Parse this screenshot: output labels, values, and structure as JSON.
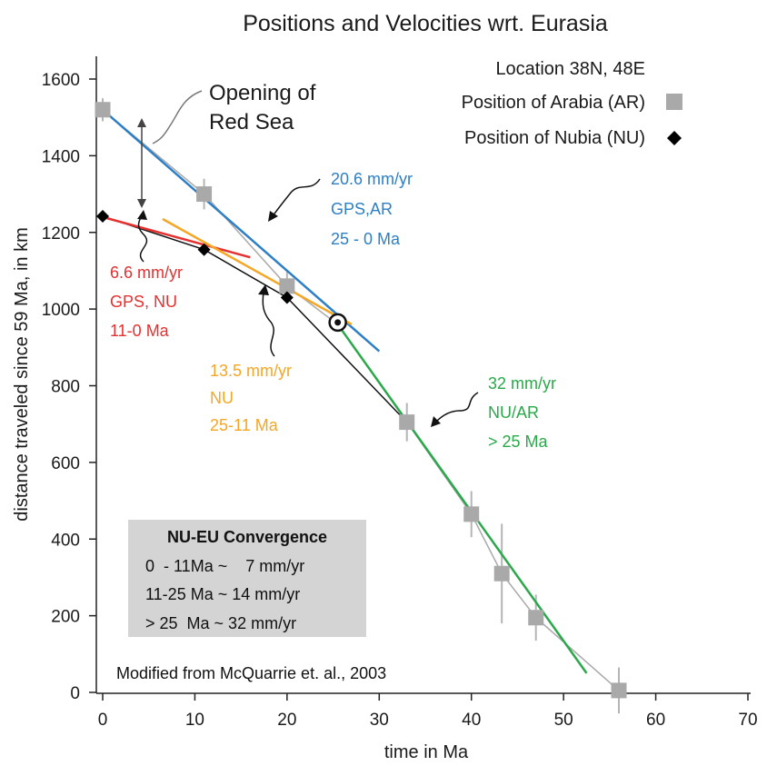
{
  "chart_data": {
    "type": "scatter",
    "title": "Positions and Velocities wrt. Eurasia",
    "xlabel": "time in Ma",
    "ylabel": "distance traveled since 59 Ma, in km",
    "xlim": [
      0,
      70
    ],
    "ylim": [
      0,
      1600
    ],
    "xticks": [
      "0",
      "10",
      "20",
      "30",
      "40",
      "50",
      "60",
      "70"
    ],
    "yticks": [
      "0",
      "200",
      "400",
      "600",
      "800",
      "1000",
      "1200",
      "1400",
      "1600"
    ],
    "grid": false,
    "legend_position": "top-right",
    "location": "Location 38N, 48E",
    "series": [
      {
        "name": "Position of Arabia (AR)",
        "marker": "square",
        "color": "#a9a9a9",
        "points": [
          {
            "x": 0,
            "y": 1520,
            "err": 30
          },
          {
            "x": 11,
            "y": 1300,
            "err": 40
          },
          {
            "x": 20,
            "y": 1060,
            "err": 40
          },
          {
            "x": 33,
            "y": 705,
            "err": 50
          },
          {
            "x": 40,
            "y": 465,
            "err": 60
          },
          {
            "x": 43.3,
            "y": 310,
            "err": 130
          },
          {
            "x": 47,
            "y": 195,
            "err": 60
          },
          {
            "x": 56,
            "y": 5,
            "err": 60
          }
        ]
      },
      {
        "name": "Position of Nubia (NU)",
        "marker": "diamond",
        "color": "#000000",
        "points": [
          {
            "x": 0,
            "y": 1242
          },
          {
            "x": 11,
            "y": 1155
          },
          {
            "x": 20,
            "y": 1030
          }
        ]
      }
    ],
    "fit_lines": [
      {
        "id": "blue",
        "color": "#2d7fc6",
        "from": [
          0,
          1520
        ],
        "to": [
          30,
          890
        ]
      },
      {
        "id": "red",
        "color": "#e53030",
        "from": [
          0,
          1240
        ],
        "to": [
          16,
          1135
        ]
      },
      {
        "id": "orange",
        "color": "#f5a623",
        "from": [
          6.5,
          1235
        ],
        "to": [
          27,
          960
        ]
      },
      {
        "id": "green",
        "color": "#2aa84a",
        "from": [
          25.5,
          960
        ],
        "to": [
          52.5,
          50
        ]
      }
    ],
    "nubia_path": [
      [
        0,
        1242
      ],
      [
        11,
        1155
      ],
      [
        20,
        1030
      ],
      [
        33,
        705
      ]
    ],
    "arabia_path": [
      [
        0,
        1520
      ],
      [
        11,
        1300
      ],
      [
        20,
        1060
      ],
      [
        25.5,
        960
      ],
      [
        33,
        705
      ],
      [
        40,
        465
      ],
      [
        43.3,
        310
      ],
      [
        47,
        195
      ],
      [
        56,
        5
      ]
    ],
    "highlight_point": {
      "x": 25.5,
      "y": 965
    },
    "annotations": {
      "red_sea": [
        "Opening of",
        "Red Sea"
      ],
      "blue": [
        "20.6 mm/yr",
        "GPS,AR",
        "25 - 0 Ma"
      ],
      "red": [
        "6.6 mm/yr",
        "GPS, NU",
        "11-0 Ma"
      ],
      "orange": [
        "13.5 mm/yr",
        "NU",
        "25-11 Ma"
      ],
      "green": [
        "32 mm/yr",
        "NU/AR",
        "> 25 Ma"
      ]
    },
    "convergence_box": {
      "title": "NU-EU Convergence",
      "lines": [
        "0  - 11Ma ~    7 mm/yr",
        "11-25 Ma ~ 14 mm/yr",
        "> 25  Ma ~ 32 mm/yr"
      ]
    },
    "source_note": "Modified from McQuarrie et. al., 2003"
  }
}
